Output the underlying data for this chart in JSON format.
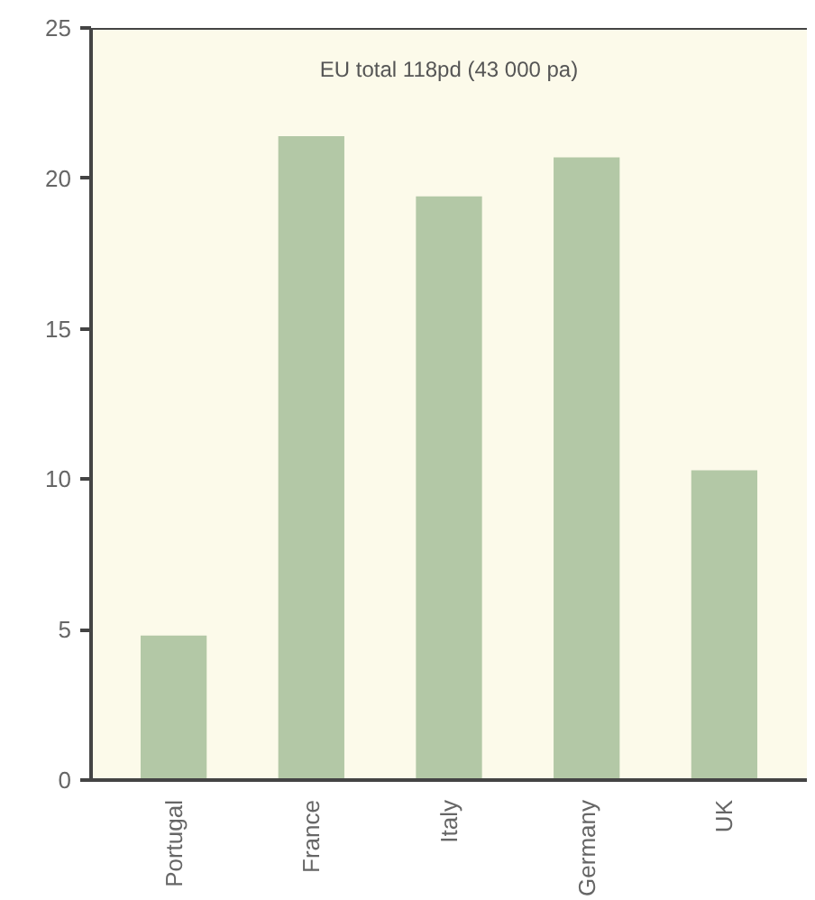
{
  "chart_data": {
    "type": "bar",
    "categories": [
      "Portugal",
      "France",
      "Italy",
      "Germany",
      "UK"
    ],
    "values": [
      4.8,
      21.4,
      19.4,
      20.7,
      10.3
    ],
    "color": "#b3c8a6",
    "ylim": [
      0,
      25
    ],
    "yticks": [
      0,
      5,
      10,
      15,
      20,
      25
    ],
    "grid": false,
    "annotations": [
      "EU total 118pd (43 000 pa)"
    ]
  }
}
